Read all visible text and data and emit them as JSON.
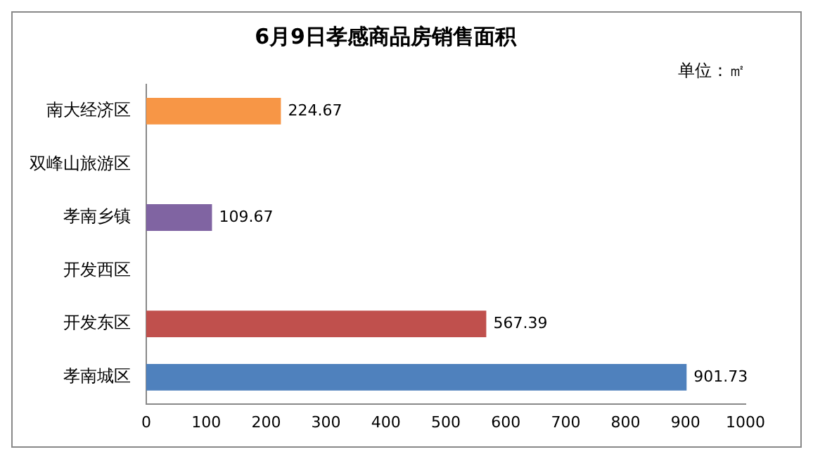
{
  "chart_data": {
    "type": "bar",
    "orientation": "horizontal",
    "title": "6月9日孝感商品房销售面积",
    "annotations": [
      "单位：㎡"
    ],
    "categories": [
      "南大经济区",
      "双峰山旅游区",
      "孝南乡镇",
      "开发西区",
      "开发东区",
      "孝南城区"
    ],
    "values": [
      224.67,
      null,
      109.67,
      null,
      567.39,
      901.73
    ],
    "colors": [
      "#f79646",
      "#8064a2",
      "#8064a2",
      "#c0504d",
      "#c0504d",
      "#4f81bd"
    ],
    "xlim": [
      0,
      1000
    ],
    "xticks": [
      0,
      100,
      200,
      300,
      400,
      500,
      600,
      700,
      800,
      900,
      1000
    ],
    "grid": false,
    "legend": false,
    "data_labels": true
  }
}
